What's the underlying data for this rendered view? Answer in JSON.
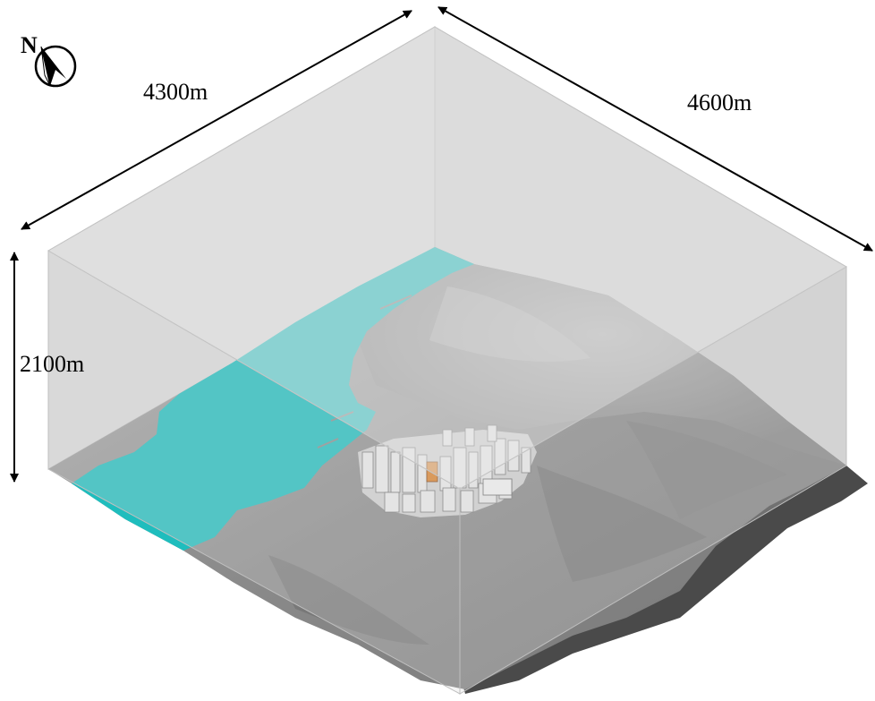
{
  "dimensions": {
    "length_label": "4300m",
    "width_label": "4600m",
    "height_label": "2100m"
  },
  "compass": {
    "letter": "N",
    "icon": "north-arrow-icon"
  },
  "colors": {
    "sea": "#1fbdbd",
    "terrain": "#8e8e8e",
    "terrain_shadow": "#555555",
    "box_wall": "#d4d4d4",
    "box_edge": "#aaaaaa",
    "highlight_building": "#d9822b",
    "buildings": "#e6e6e6"
  }
}
